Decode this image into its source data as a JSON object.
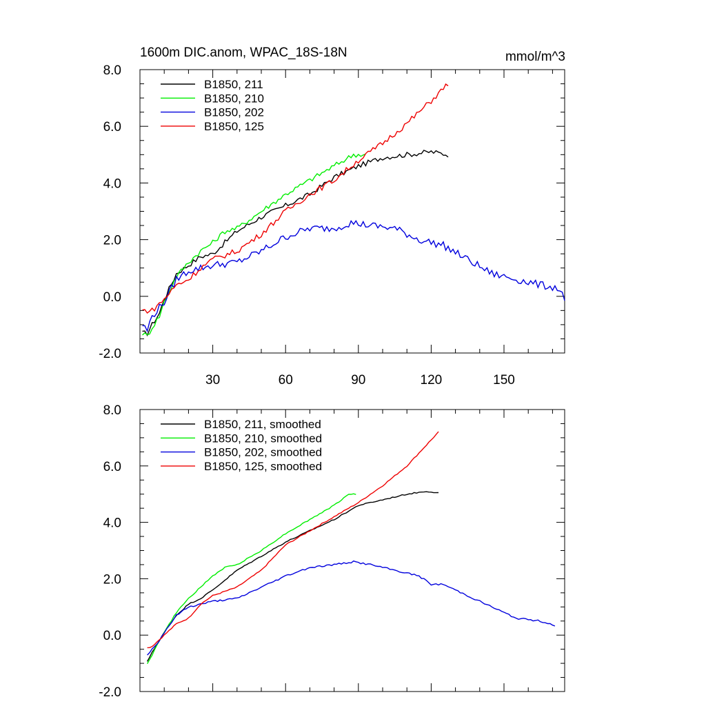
{
  "figure": {
    "title": "1600m DIC.anom, WPAC_18S-18N",
    "units": "mmol/m^3"
  },
  "chart_data": [
    {
      "type": "line",
      "panel": "top",
      "xlim": [
        0,
        175
      ],
      "ylim": [
        -2.0,
        8.0
      ],
      "x_ticks": [
        30,
        60,
        90,
        120,
        150
      ],
      "x_tick_labels": [
        "30",
        "60",
        "90",
        "120",
        "150"
      ],
      "y_ticks": [
        -2.0,
        0.0,
        2.0,
        4.0,
        6.0,
        8.0
      ],
      "y_tick_labels": [
        "-2.0",
        "0.0",
        "2.0",
        "4.0",
        "6.0",
        "8.0"
      ],
      "legend_position": "top-left",
      "series": [
        {
          "name": "B1850, 211",
          "color": "#000000",
          "x_end": 127,
          "noise": 0.09,
          "points": [
            [
              1,
              -1.3
            ],
            [
              3,
              -1.3
            ],
            [
              5,
              -1.0
            ],
            [
              8,
              -0.6
            ],
            [
              10,
              -0.1
            ],
            [
              15,
              0.8
            ],
            [
              20,
              1.1
            ],
            [
              25,
              1.4
            ],
            [
              30,
              1.5
            ],
            [
              40,
              2.3
            ],
            [
              50,
              2.8
            ],
            [
              60,
              3.2
            ],
            [
              70,
              3.6
            ],
            [
              80,
              4.2
            ],
            [
              90,
              4.6
            ],
            [
              100,
              4.9
            ],
            [
              110,
              5.0
            ],
            [
              120,
              5.1
            ],
            [
              127,
              5.0
            ]
          ]
        },
        {
          "name": "B1850, 210",
          "color": "#00ee00",
          "x_end": 93,
          "noise": 0.09,
          "points": [
            [
              1,
              -1.3
            ],
            [
              3,
              -1.4
            ],
            [
              5,
              -1.1
            ],
            [
              8,
              -0.7
            ],
            [
              10,
              -0.2
            ],
            [
              15,
              0.7
            ],
            [
              20,
              1.2
            ],
            [
              25,
              1.6
            ],
            [
              30,
              1.9
            ],
            [
              35,
              2.3
            ],
            [
              40,
              2.4
            ],
            [
              50,
              3.0
            ],
            [
              60,
              3.6
            ],
            [
              70,
              4.1
            ],
            [
              80,
              4.6
            ],
            [
              88,
              5.0
            ],
            [
              93,
              5.0
            ]
          ]
        },
        {
          "name": "B1850, 202",
          "color": "#0000dd",
          "x_end": 175,
          "noise": 0.13,
          "points": [
            [
              1,
              -1.0
            ],
            [
              3,
              -1.2
            ],
            [
              5,
              -0.7
            ],
            [
              10,
              -0.2
            ],
            [
              15,
              0.6
            ],
            [
              20,
              0.9
            ],
            [
              30,
              1.1
            ],
            [
              40,
              1.2
            ],
            [
              50,
              1.6
            ],
            [
              60,
              2.1
            ],
            [
              70,
              2.4
            ],
            [
              80,
              2.4
            ],
            [
              87,
              2.6
            ],
            [
              95,
              2.5
            ],
            [
              105,
              2.4
            ],
            [
              115,
              2.0
            ],
            [
              125,
              1.8
            ],
            [
              135,
              1.3
            ],
            [
              145,
              0.8
            ],
            [
              155,
              0.6
            ],
            [
              165,
              0.4
            ],
            [
              172,
              0.3
            ],
            [
              175,
              -0.05
            ]
          ]
        },
        {
          "name": "B1850, 125",
          "color": "#ee0000",
          "x_end": 127,
          "noise": 0.1,
          "points": [
            [
              1,
              -0.5
            ],
            [
              5,
              -0.5
            ],
            [
              10,
              -0.1
            ],
            [
              15,
              0.4
            ],
            [
              20,
              0.6
            ],
            [
              25,
              1.0
            ],
            [
              30,
              1.3
            ],
            [
              40,
              1.6
            ],
            [
              50,
              2.2
            ],
            [
              60,
              3.0
            ],
            [
              70,
              3.6
            ],
            [
              80,
              4.1
            ],
            [
              90,
              4.8
            ],
            [
              100,
              5.4
            ],
            [
              110,
              6.1
            ],
            [
              120,
              6.9
            ],
            [
              127,
              7.5
            ]
          ]
        }
      ]
    },
    {
      "type": "line",
      "panel": "bottom",
      "xlim": [
        0,
        175
      ],
      "ylim": [
        -2.0,
        8.0
      ],
      "x_ticks": [
        30,
        60,
        90,
        120,
        150
      ],
      "x_tick_labels": [],
      "y_ticks": [
        -2.0,
        0.0,
        2.0,
        4.0,
        6.0,
        8.0
      ],
      "y_tick_labels": [
        "-2.0",
        "0.0",
        "2.0",
        "4.0",
        "6.0",
        "8.0"
      ],
      "legend_position": "top-left",
      "series": [
        {
          "name": "B1850, 211, smoothed",
          "color": "#000000",
          "x_end": 123,
          "noise": 0.02,
          "points": [
            [
              3,
              -0.95
            ],
            [
              5,
              -0.6
            ],
            [
              8,
              -0.2
            ],
            [
              10,
              0.1
            ],
            [
              15,
              0.7
            ],
            [
              20,
              1.1
            ],
            [
              25,
              1.3
            ],
            [
              30,
              1.6
            ],
            [
              40,
              2.3
            ],
            [
              50,
              2.8
            ],
            [
              60,
              3.3
            ],
            [
              70,
              3.7
            ],
            [
              80,
              4.1
            ],
            [
              90,
              4.6
            ],
            [
              100,
              4.8
            ],
            [
              110,
              5.0
            ],
            [
              118,
              5.1
            ],
            [
              123,
              5.05
            ]
          ]
        },
        {
          "name": "B1850, 210, smoothed",
          "color": "#00ee00",
          "x_end": 89,
          "noise": 0.02,
          "points": [
            [
              3,
              -1.0
            ],
            [
              5,
              -0.7
            ],
            [
              8,
              -0.2
            ],
            [
              10,
              0.1
            ],
            [
              15,
              0.8
            ],
            [
              20,
              1.3
            ],
            [
              25,
              1.7
            ],
            [
              30,
              2.1
            ],
            [
              35,
              2.4
            ],
            [
              40,
              2.5
            ],
            [
              50,
              3.0
            ],
            [
              60,
              3.6
            ],
            [
              70,
              4.1
            ],
            [
              80,
              4.6
            ],
            [
              86,
              5.0
            ],
            [
              89,
              5.0
            ]
          ]
        },
        {
          "name": "B1850, 202, smoothed",
          "color": "#0000dd",
          "x_end": 171,
          "noise": 0.03,
          "points": [
            [
              3,
              -0.7
            ],
            [
              5,
              -0.5
            ],
            [
              8,
              -0.2
            ],
            [
              10,
              0.1
            ],
            [
              15,
              0.7
            ],
            [
              20,
              1.0
            ],
            [
              25,
              1.1
            ],
            [
              30,
              1.2
            ],
            [
              40,
              1.3
            ],
            [
              50,
              1.7
            ],
            [
              60,
              2.1
            ],
            [
              70,
              2.4
            ],
            [
              80,
              2.5
            ],
            [
              88,
              2.6
            ],
            [
              95,
              2.5
            ],
            [
              105,
              2.3
            ],
            [
              115,
              2.1
            ],
            [
              120,
              1.8
            ],
            [
              125,
              1.8
            ],
            [
              130,
              1.6
            ],
            [
              140,
              1.2
            ],
            [
              150,
              0.8
            ],
            [
              155,
              0.6
            ],
            [
              165,
              0.5
            ],
            [
              171,
              0.35
            ]
          ]
        },
        {
          "name": "B1850, 125, smoothed",
          "color": "#ee0000",
          "x_end": 123,
          "noise": 0.02,
          "points": [
            [
              3,
              -0.45
            ],
            [
              5,
              -0.4
            ],
            [
              10,
              0.0
            ],
            [
              15,
              0.4
            ],
            [
              20,
              0.6
            ],
            [
              25,
              1.1
            ],
            [
              30,
              1.4
            ],
            [
              40,
              1.7
            ],
            [
              50,
              2.3
            ],
            [
              60,
              3.2
            ],
            [
              70,
              3.7
            ],
            [
              80,
              4.2
            ],
            [
              90,
              4.7
            ],
            [
              100,
              5.3
            ],
            [
              110,
              6.0
            ],
            [
              123,
              7.2
            ]
          ]
        }
      ]
    }
  ]
}
